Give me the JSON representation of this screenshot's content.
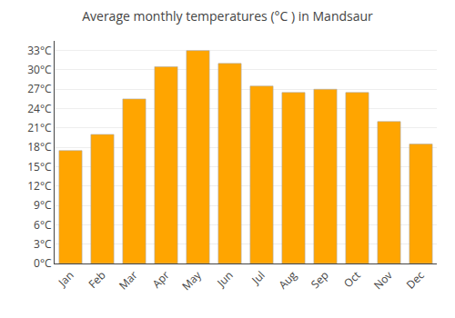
{
  "chart_data": {
    "type": "bar",
    "title": "Average monthly temperatures (°C ) in Mandsaur",
    "categories": [
      "Jan",
      "Feb",
      "Mar",
      "Apr",
      "May",
      "Jun",
      "Jul",
      "Aug",
      "Sep",
      "Oct",
      "Nov",
      "Dec"
    ],
    "values": [
      17.5,
      20.0,
      25.5,
      30.5,
      33.0,
      31.0,
      27.5,
      26.5,
      27.0,
      26.5,
      22.0,
      18.5
    ],
    "color": "#FFA500",
    "ylim": [
      0,
      34.5
    ],
    "yticks": [
      {
        "value": 0,
        "label": "0°C"
      },
      {
        "value": 3,
        "label": "3°C"
      },
      {
        "value": 6,
        "label": "6°C"
      },
      {
        "value": 9,
        "label": "9°C"
      },
      {
        "value": 12,
        "label": "12°C"
      },
      {
        "value": 15,
        "label": "15°C"
      },
      {
        "value": 18,
        "label": "18°C"
      },
      {
        "value": 21,
        "label": "21°C"
      },
      {
        "value": 24,
        "label": "24°C"
      },
      {
        "value": 27,
        "label": "27°C"
      },
      {
        "value": 30,
        "label": "30°C"
      },
      {
        "value": 33,
        "label": "33°C"
      }
    ],
    "grid": true
  }
}
